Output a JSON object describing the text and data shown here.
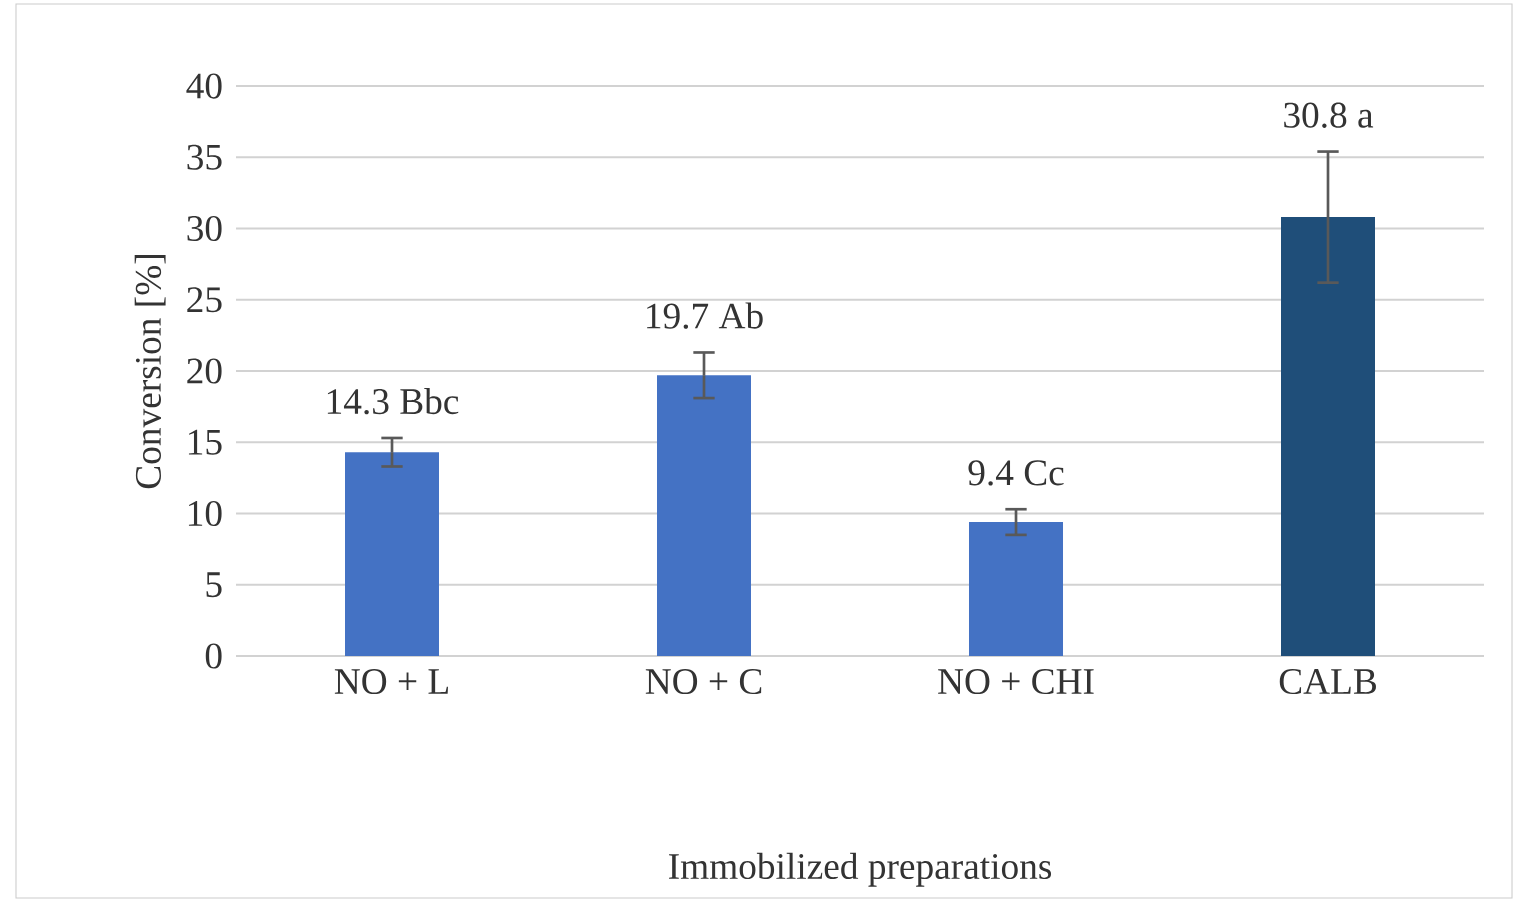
{
  "chart_data": {
    "type": "bar",
    "xlabel": "Immobilized preparations",
    "ylabel": "Conversion [%]",
    "categories": [
      "NO + L",
      "NO + C",
      "NO + CHI",
      "CALB"
    ],
    "values": [
      14.3,
      19.7,
      9.4,
      30.8
    ],
    "errors": [
      1.0,
      1.6,
      0.9,
      4.6
    ],
    "colors": [
      "#4472c4",
      "#4472c4",
      "#4472c4",
      "#1f4e79"
    ],
    "value_labels": [
      "14.3 Bbc",
      "19.7 Ab",
      "9.4 Cc",
      "30.8 a"
    ],
    "ylim": [
      0,
      40
    ],
    "yticks": [
      0,
      5,
      10,
      15,
      20,
      25,
      30,
      35,
      40
    ],
    "grid": "y"
  }
}
